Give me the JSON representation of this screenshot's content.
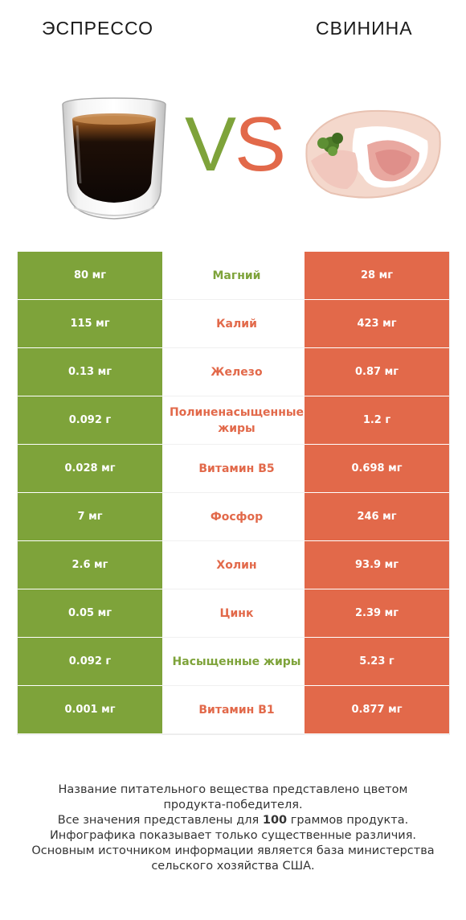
{
  "header": {
    "left_title": "ЭСПРЕССО",
    "right_title": "СВИНИНА",
    "vs_v": "V",
    "vs_s": "S"
  },
  "colors": {
    "left_winner": "#7ea33a",
    "right_winner": "#e2694a"
  },
  "rows": [
    {
      "left": "80 мг",
      "nutrient": "Магний",
      "right": "28 мг",
      "winner": "left"
    },
    {
      "left": "115 мг",
      "nutrient": "Калий",
      "right": "423 мг",
      "winner": "right"
    },
    {
      "left": "0.13 мг",
      "nutrient": "Железо",
      "right": "0.87 мг",
      "winner": "right"
    },
    {
      "left": "0.092 г",
      "nutrient": "Полиненасыщенные жиры",
      "right": "1.2 г",
      "winner": "right"
    },
    {
      "left": "0.028 мг",
      "nutrient": "Витамин B5",
      "right": "0.698 мг",
      "winner": "right"
    },
    {
      "left": "7 мг",
      "nutrient": "Фосфор",
      "right": "246 мг",
      "winner": "right"
    },
    {
      "left": "2.6 мг",
      "nutrient": "Холин",
      "right": "93.9 мг",
      "winner": "right"
    },
    {
      "left": "0.05 мг",
      "nutrient": "Цинк",
      "right": "2.39 мг",
      "winner": "right"
    },
    {
      "left": "0.092 г",
      "nutrient": "Насыщенные жиры",
      "right": "5.23 г",
      "winner": "left"
    },
    {
      "left": "0.001 мг",
      "nutrient": "Витамин B1",
      "right": "0.877 мг",
      "winner": "right"
    }
  ],
  "footer": {
    "line1": "Название питательного вещества представлено цветом",
    "line2": "продукта-победителя.",
    "line3_pre": "Все значения представлены для ",
    "line3_bold": "100",
    "line3_post": " граммов продукта.",
    "line4": "Инфографика показывает только существенные различия.",
    "line5": "Основным источником информации является база министерства",
    "line6": "сельского хозяйства США."
  }
}
